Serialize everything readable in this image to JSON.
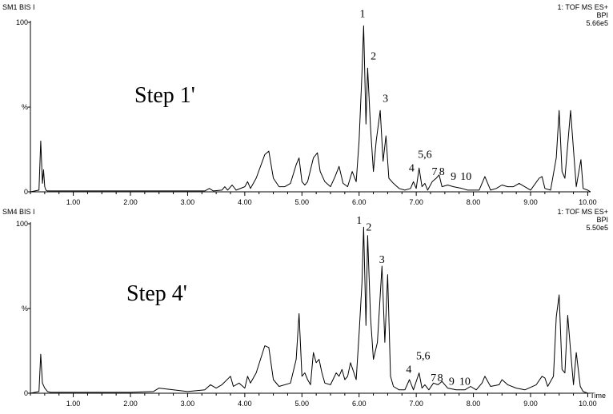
{
  "chart_data": [
    {
      "type": "line",
      "panel_id": "SM1 BIS I",
      "step_label": "Step  1'",
      "info_lines": [
        "1: TOF MS ES+",
        "BPI",
        "5.66e5"
      ],
      "y_ticks": [
        "100",
        "%",
        "0"
      ],
      "x_ticks": [
        "1.00",
        "2.00",
        "3.00",
        "4.00",
        "5.00",
        "6.00",
        "7.00",
        "8.00",
        "9.00",
        "10.00"
      ],
      "x_axis_label": "",
      "xlim": [
        0.25,
        10.05
      ],
      "ylim": [
        0,
        100
      ],
      "series": [
        {
          "x": [
            0.25,
            0.4,
            0.43,
            0.46,
            0.48,
            0.5,
            0.52,
            0.55,
            0.6,
            0.8,
            1.0,
            1.2,
            1.5,
            2.0,
            2.5,
            3.0,
            3.3,
            3.38,
            3.45,
            3.6,
            3.65,
            3.7,
            3.78,
            3.85,
            4.0,
            4.05,
            4.1,
            4.2,
            4.35,
            4.42,
            4.5,
            4.6,
            4.7,
            4.8,
            4.9,
            4.95,
            5.0,
            5.05,
            5.1,
            5.2,
            5.27,
            5.32,
            5.4,
            5.5,
            5.58,
            5.65,
            5.72,
            5.8,
            5.88,
            5.95,
            6.0,
            6.05,
            6.08,
            6.12,
            6.15,
            6.2,
            6.25,
            6.3,
            6.37,
            6.42,
            6.47,
            6.52,
            6.6,
            6.7,
            6.8,
            6.9,
            6.95,
            7.0,
            7.05,
            7.1,
            7.15,
            7.2,
            7.28,
            7.35,
            7.4,
            7.45,
            7.55,
            7.65,
            7.8,
            7.9,
            8.0,
            8.1,
            8.2,
            8.3,
            8.4,
            8.5,
            8.6,
            8.7,
            8.8,
            9.0,
            9.15,
            9.2,
            9.25,
            9.35,
            9.45,
            9.5,
            9.55,
            9.6,
            9.7,
            9.75,
            9.8,
            9.88,
            9.92,
            10.0,
            10.05
          ],
          "y": [
            0,
            1,
            30,
            5,
            13,
            3,
            1,
            0.5,
            0.5,
            0.5,
            0.5,
            0.5,
            0.5,
            0.5,
            0.5,
            0.5,
            0.5,
            2,
            0.5,
            1,
            3,
            1,
            4,
            1,
            3,
            6,
            2,
            8,
            22,
            24,
            8,
            3,
            3,
            5,
            16,
            20,
            6,
            4,
            6,
            20,
            23,
            12,
            6,
            3,
            9,
            15,
            5,
            3,
            12,
            6,
            30,
            70,
            98,
            40,
            73,
            38,
            12,
            30,
            48,
            18,
            33,
            8,
            5,
            2,
            1,
            2,
            6,
            2,
            14,
            3,
            5,
            1,
            6,
            8,
            10,
            3,
            4,
            3,
            2,
            1,
            1,
            1,
            9,
            1,
            2,
            4,
            3,
            3,
            5,
            1,
            8,
            9,
            2,
            1,
            20,
            48,
            12,
            8,
            48,
            25,
            3,
            19,
            2,
            1,
            0
          ]
        }
      ],
      "peak_labels": [
        {
          "text": "1",
          "x": 6.06,
          "y": 103
        },
        {
          "text": "2",
          "x": 6.25,
          "y": 78
        },
        {
          "text": "3",
          "x": 6.46,
          "y": 53
        },
        {
          "text": "4",
          "x": 6.92,
          "y": 12
        },
        {
          "text": "5,6",
          "x": 7.15,
          "y": 20
        },
        {
          "text": "7",
          "x": 7.32,
          "y": 10
        },
        {
          "text": "8",
          "x": 7.45,
          "y": 10
        },
        {
          "text": "9",
          "x": 7.65,
          "y": 7
        },
        {
          "text": "10",
          "x": 7.87,
          "y": 7
        }
      ]
    },
    {
      "type": "line",
      "panel_id": "SM4 BIS I",
      "step_label": "Step  4'",
      "info_lines": [
        "1: TOF MS ES+",
        "BPI",
        "5.50e5"
      ],
      "y_ticks": [
        "100",
        "%",
        "0"
      ],
      "x_ticks": [
        "1.00",
        "2.00",
        "3.00",
        "4.00",
        "5.00",
        "6.00",
        "7.00",
        "8.00",
        "9.00",
        "10.00"
      ],
      "x_axis_label": "Time",
      "xlim": [
        0.25,
        10.05
      ],
      "ylim": [
        0,
        100
      ],
      "series": [
        {
          "x": [
            0.25,
            0.4,
            0.43,
            0.46,
            0.5,
            0.55,
            0.6,
            0.8,
            1.0,
            1.5,
            2.0,
            2.4,
            2.5,
            3.0,
            3.3,
            3.4,
            3.5,
            3.6,
            3.75,
            3.8,
            3.9,
            4.0,
            4.05,
            4.1,
            4.2,
            4.35,
            4.42,
            4.5,
            4.6,
            4.8,
            4.9,
            4.95,
            5.0,
            5.05,
            5.1,
            5.15,
            5.2,
            5.25,
            5.3,
            5.35,
            5.4,
            5.5,
            5.6,
            5.65,
            5.7,
            5.75,
            5.8,
            5.85,
            5.95,
            6.0,
            6.05,
            6.08,
            6.12,
            6.15,
            6.2,
            6.25,
            6.32,
            6.4,
            6.45,
            6.5,
            6.55,
            6.6,
            6.7,
            6.8,
            6.88,
            6.95,
            7.05,
            7.1,
            7.15,
            7.22,
            7.3,
            7.38,
            7.45,
            7.55,
            7.7,
            7.85,
            7.95,
            8.05,
            8.15,
            8.2,
            8.3,
            8.45,
            8.5,
            8.6,
            8.75,
            8.9,
            9.1,
            9.2,
            9.25,
            9.3,
            9.4,
            9.45,
            9.5,
            9.55,
            9.6,
            9.65,
            9.7,
            9.75,
            9.8,
            9.87,
            9.92,
            10.0,
            10.05
          ],
          "y": [
            0,
            1,
            23,
            6,
            3,
            1,
            0.5,
            0.5,
            0.5,
            0.5,
            0.5,
            1,
            3,
            1,
            2,
            5,
            3,
            5,
            10,
            4,
            6,
            3,
            10,
            6,
            12,
            28,
            27,
            8,
            4,
            6,
            20,
            47,
            10,
            12,
            8,
            5,
            24,
            18,
            20,
            12,
            6,
            5,
            12,
            10,
            14,
            8,
            10,
            18,
            8,
            35,
            65,
            98,
            40,
            93,
            45,
            20,
            30,
            75,
            30,
            70,
            10,
            4,
            2,
            2,
            8,
            2,
            12,
            3,
            5,
            2,
            6,
            5,
            7,
            3,
            2,
            2,
            4,
            2,
            6,
            10,
            4,
            5,
            8,
            5,
            3,
            2,
            5,
            10,
            9,
            4,
            10,
            45,
            58,
            14,
            12,
            46,
            25,
            5,
            24,
            4,
            1,
            0,
            0
          ]
        }
      ],
      "peak_labels": [
        {
          "text": "1",
          "x": 6.0,
          "y": 100
        },
        {
          "text": "2",
          "x": 6.17,
          "y": 96
        },
        {
          "text": "3",
          "x": 6.4,
          "y": 77
        },
        {
          "text": "4",
          "x": 6.87,
          "y": 12
        },
        {
          "text": "5,6",
          "x": 7.12,
          "y": 20
        },
        {
          "text": "7",
          "x": 7.3,
          "y": 7
        },
        {
          "text": "8",
          "x": 7.42,
          "y": 7
        },
        {
          "text": "9",
          "x": 7.62,
          "y": 5
        },
        {
          "text": "10",
          "x": 7.85,
          "y": 5
        }
      ]
    }
  ],
  "colors": {
    "trace": "#000000",
    "background": "#ffffff"
  }
}
